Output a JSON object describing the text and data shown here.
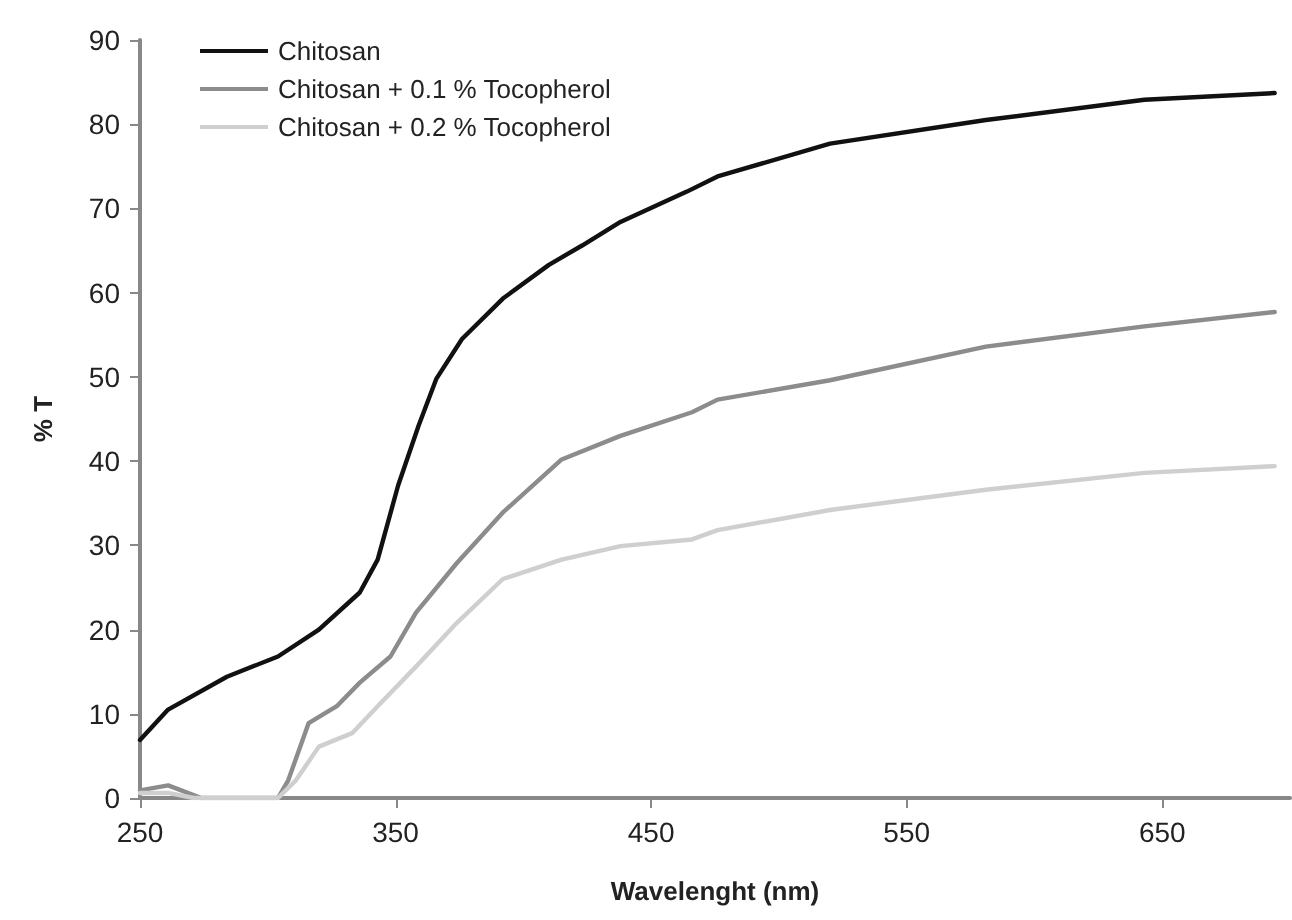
{
  "chart_data": {
    "type": "line",
    "xlabel": "Wavelenght (nm)",
    "ylabel": "% T",
    "xlim": [
      250,
      700
    ],
    "xticks": [
      250,
      350,
      450,
      550,
      650
    ],
    "ylim": [
      0,
      90
    ],
    "yticks": [
      0,
      10,
      20,
      30,
      40,
      50,
      60,
      70,
      80,
      90
    ],
    "grid": false,
    "legend": "top left",
    "marker": "none",
    "line_style": "solid",
    "series": [
      {
        "name": "Chitosan",
        "color": "#111111",
        "x": [
          250,
          261,
          284,
          304,
          320,
          336,
          343,
          351,
          359,
          366,
          376,
          392,
          410,
          423,
          438,
          464,
          476,
          520,
          581,
          643,
          694
        ],
        "values": [
          6.9,
          10.5,
          14.4,
          16.8,
          20.0,
          24.4,
          28.3,
          37.1,
          44.2,
          49.8,
          54.5,
          59.3,
          63.3,
          65.6,
          68.4,
          72.0,
          73.8,
          77.7,
          80.5,
          82.9,
          83.7
        ]
      },
      {
        "name": "Chitosan + 0.1 % Tocopherol",
        "color": "#8c8c8c",
        "x": [
          250,
          261,
          274,
          304,
          308,
          316,
          327,
          336,
          348,
          358,
          374,
          392,
          415,
          438,
          466,
          476,
          520,
          581,
          643,
          694
        ],
        "values": [
          0.9,
          1.5,
          0,
          0,
          2.1,
          8.9,
          10.9,
          13.7,
          16.8,
          22.0,
          27.9,
          33.9,
          40.2,
          43.0,
          45.8,
          47.3,
          49.6,
          53.6,
          56.0,
          57.7
        ]
      },
      {
        "name": "Chitosan + 0.2 % Tocopherol",
        "color": "#cfcfcf",
        "x": [
          250,
          261,
          271,
          304,
          311,
          320,
          333,
          343,
          358,
          374,
          392,
          415,
          438,
          466,
          476,
          520,
          581,
          643,
          694
        ],
        "values": [
          0.6,
          0.6,
          0,
          0,
          2.1,
          6.1,
          7.7,
          10.9,
          15.6,
          20.8,
          26.0,
          28.3,
          29.9,
          30.7,
          31.8,
          34.2,
          36.6,
          38.6,
          39.4
        ]
      }
    ]
  }
}
